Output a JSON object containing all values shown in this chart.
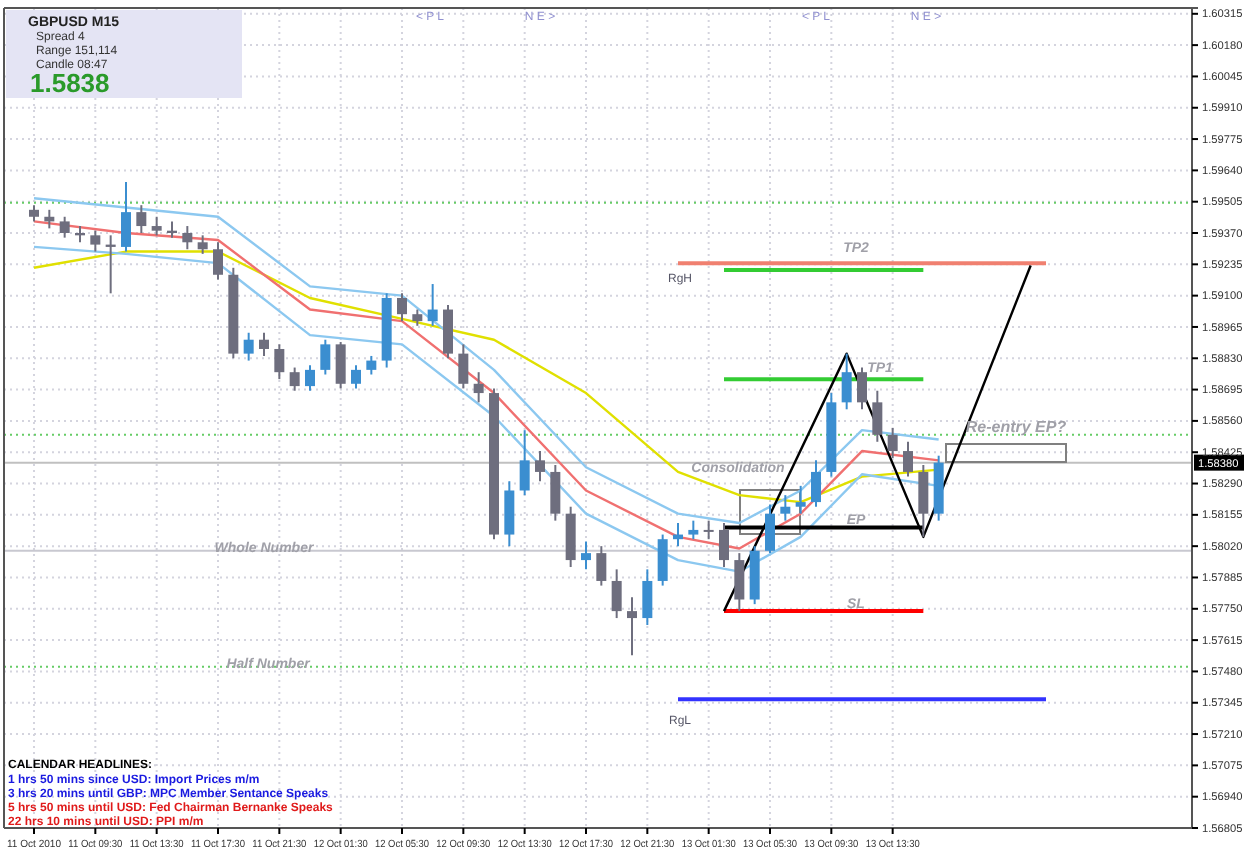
{
  "chart_data": {
    "type": "candlestick",
    "title": "GBPUSD M15",
    "annotations": [
      "Spread 4",
      "Range 151,114",
      "Candle 08:47",
      "1.5838",
      "CALENDAR HEADLINES:",
      "1 hrs 50 mins since USD: Import Prices m/m",
      "3 hrs 20 mins until GBP: MPC Member Sentance Speaks",
      "5 hrs 50 mins until USD: Fed Chairman Bernanke Speaks",
      "22 hrs 10 mins until USD: PPI m/m",
      "Whole Number",
      "Half Number",
      "RgH",
      "TP2",
      "TP1",
      "EP",
      "SL",
      "RgL",
      "Consolidation",
      "Re-entry EP?",
      "< P L",
      "N E >",
      "< P L",
      "N E >"
    ],
    "categories": [
      "11 Oct 2010",
      null,
      null,
      null,
      "11 Oct 09:30",
      null,
      null,
      null,
      "11 Oct 13:30",
      null,
      null,
      null,
      "11 Oct 17:30",
      null,
      null,
      null,
      "11 Oct 21:30",
      null,
      null,
      null,
      "12 Oct 01:30",
      null,
      null,
      null,
      "12 Oct 05:30",
      null,
      null,
      null,
      "12 Oct 09:30",
      null,
      null,
      null,
      "12 Oct 13:30",
      null,
      null,
      null,
      "12 Oct 17:30",
      null,
      null,
      null,
      "12 Oct 21:30",
      null,
      null,
      null,
      "13 Oct 01:30",
      null,
      null,
      null,
      "13 Oct 05:30",
      null,
      null,
      null,
      "13 Oct 09:30",
      null,
      null,
      null,
      "13 Oct 13:30",
      null,
      null,
      null,
      null,
      null,
      null,
      null,
      null,
      null,
      null,
      null,
      null,
      null,
      null,
      null,
      null,
      null,
      null,
      null
    ],
    "ohlc": [
      [
        1.5947,
        1.5949,
        1.5942,
        1.5944
      ],
      [
        1.5944,
        1.5947,
        1.5939,
        1.5942
      ],
      [
        1.5942,
        1.5944,
        1.5935,
        1.5937
      ],
      [
        1.5937,
        1.594,
        1.5933,
        1.5936
      ],
      [
        1.5936,
        1.5938,
        1.5929,
        1.5932
      ],
      [
        1.5932,
        1.5936,
        1.5911,
        1.5931
      ],
      [
        1.5931,
        1.5959,
        1.5929,
        1.5946
      ],
      [
        1.5946,
        1.5949,
        1.5937,
        1.594
      ],
      [
        1.594,
        1.5944,
        1.5936,
        1.5938
      ],
      [
        1.5938,
        1.5942,
        1.5935,
        1.5937
      ],
      [
        1.5937,
        1.594,
        1.593,
        1.5933
      ],
      [
        1.5933,
        1.5936,
        1.5928,
        1.593
      ],
      [
        1.593,
        1.5933,
        1.5917,
        1.5919
      ],
      [
        1.5919,
        1.5922,
        1.5883,
        1.5885
      ],
      [
        1.5885,
        1.5894,
        1.5882,
        1.5891
      ],
      [
        1.5891,
        1.5894,
        1.5884,
        1.5887
      ],
      [
        1.5887,
        1.5889,
        1.5874,
        1.5877
      ],
      [
        1.5877,
        1.5879,
        1.5869,
        1.5871
      ],
      [
        1.5871,
        1.588,
        1.5869,
        1.5878
      ],
      [
        1.5878,
        1.5891,
        1.5876,
        1.5889
      ],
      [
        1.5889,
        1.589,
        1.587,
        1.5872
      ],
      [
        1.5872,
        1.588,
        1.587,
        1.5878
      ],
      [
        1.5878,
        1.5884,
        1.5876,
        1.5882
      ],
      [
        1.5882,
        1.5911,
        1.5879,
        1.5909
      ],
      [
        1.5909,
        1.5911,
        1.5899,
        1.5902
      ],
      [
        1.5902,
        1.5904,
        1.5897,
        1.5899
      ],
      [
        1.5899,
        1.5915,
        1.5897,
        1.5904
      ],
      [
        1.5904,
        1.5906,
        1.5883,
        1.5885
      ],
      [
        1.5885,
        1.5889,
        1.587,
        1.5872
      ],
      [
        1.5872,
        1.5877,
        1.5864,
        1.5868
      ],
      [
        1.5868,
        1.587,
        1.5805,
        1.5807
      ],
      [
        1.5807,
        1.583,
        1.5802,
        1.5826
      ],
      [
        1.5826,
        1.5852,
        1.5824,
        1.5839
      ],
      [
        1.5839,
        1.5843,
        1.583,
        1.5834
      ],
      [
        1.5834,
        1.5837,
        1.5813,
        1.5816
      ],
      [
        1.5816,
        1.5819,
        1.5793,
        1.5796
      ],
      [
        1.5796,
        1.5804,
        1.5792,
        1.5799
      ],
      [
        1.5799,
        1.5802,
        1.5785,
        1.5787
      ],
      [
        1.5787,
        1.5792,
        1.5771,
        1.5774
      ],
      [
        1.5774,
        1.578,
        1.5755,
        1.5771
      ],
      [
        1.5771,
        1.5792,
        1.5768,
        1.5787
      ],
      [
        1.5787,
        1.5807,
        1.5785,
        1.5805
      ],
      [
        1.5805,
        1.5812,
        1.5802,
        1.5807
      ],
      [
        1.5807,
        1.5813,
        1.5805,
        1.5809
      ],
      [
        1.5809,
        1.5813,
        1.5805,
        1.5809
      ],
      [
        1.5809,
        1.5812,
        1.5793,
        1.5796
      ],
      [
        1.5796,
        1.5799,
        1.5774,
        1.5779
      ],
      [
        1.5779,
        1.5802,
        1.5777,
        1.58
      ],
      [
        1.58,
        1.582,
        1.5799,
        1.5816
      ],
      [
        1.5816,
        1.5824,
        1.5813,
        1.5819
      ],
      [
        1.5819,
        1.5828,
        1.5816,
        1.5821
      ],
      [
        1.5821,
        1.5839,
        1.5819,
        1.5834
      ],
      [
        1.5834,
        1.5868,
        1.5832,
        1.5864
      ],
      [
        1.5864,
        1.5885,
        1.5861,
        1.5877
      ],
      [
        1.5877,
        1.5879,
        1.5861,
        1.5864
      ],
      [
        1.5864,
        1.5869,
        1.5847,
        1.585
      ],
      [
        1.585,
        1.5853,
        1.584,
        1.5843
      ],
      [
        1.5843,
        1.5847,
        1.5832,
        1.5834
      ],
      [
        1.5834,
        1.5837,
        1.5806,
        1.5816
      ],
      [
        1.5816,
        1.5841,
        1.5813,
        1.5838
      ],
      null,
      null,
      null,
      null,
      null,
      null,
      null,
      null,
      null,
      null,
      null,
      null,
      null,
      null,
      null,
      null
    ],
    "colors": [
      "#6e6e7e",
      "#6e6e7e",
      "#6e6e7e",
      "#6e6e7e",
      "#6e6e7e",
      "#6e6e7e",
      "#3b8ed0",
      "#6e6e7e",
      "#6e6e7e",
      "#6e6e7e",
      "#6e6e7e",
      "#6e6e7e",
      "#6e6e7e",
      "#6e6e7e",
      "#3b8ed0",
      "#6e6e7e",
      "#6e6e7e",
      "#6e6e7e",
      "#3b8ed0",
      "#3b8ed0",
      "#6e6e7e",
      "#3b8ed0",
      "#3b8ed0",
      "#3b8ed0",
      "#6e6e7e",
      "#6e6e7e",
      "#3b8ed0",
      "#6e6e7e",
      "#6e6e7e",
      "#6e6e7e",
      "#6e6e7e",
      "#3b8ed0",
      "#3b8ed0",
      "#6e6e7e",
      "#6e6e7e",
      "#6e6e7e",
      "#3b8ed0",
      "#6e6e7e",
      "#6e6e7e",
      "#6e6e7e",
      "#3b8ed0",
      "#3b8ed0",
      "#3b8ed0",
      "#3b8ed0",
      "#6e6e7e",
      "#6e6e7e",
      "#6e6e7e",
      "#3b8ed0",
      "#3b8ed0",
      "#3b8ed0",
      "#3b8ed0",
      "#3b8ed0",
      "#3b8ed0",
      "#3b8ed0",
      "#6e6e7e",
      "#6e6e7e",
      "#6e6e7e",
      "#6e6e7e",
      "#6e6e7e",
      "#3b8ed0",
      null,
      null,
      null,
      null,
      null,
      null,
      null,
      null,
      null,
      null,
      null,
      null,
      null,
      null,
      null,
      null
    ],
    "series": [
      {
        "type": "line",
        "color": "#e0e000",
        "values": [
          1.5922,
          null,
          null,
          null,
          null,
          null,
          1.5929,
          null,
          null,
          null,
          null,
          null,
          1.5929,
          null,
          null,
          null,
          null,
          null,
          1.5909,
          null,
          null,
          null,
          null,
          null,
          1.59,
          null,
          null,
          null,
          null,
          null,
          1.5891,
          null,
          null,
          null,
          null,
          null,
          1.5868,
          null,
          null,
          null,
          null,
          null,
          1.5834,
          null,
          null,
          null,
          1.5824,
          null,
          null,
          null,
          1.5821,
          null,
          null,
          null,
          1.5832,
          null,
          null,
          null,
          null,
          1.5835,
          null,
          null,
          null,
          null,
          null,
          null,
          null,
          null,
          null,
          null,
          null,
          null,
          null,
          null,
          null,
          null
        ]
      },
      {
        "type": "line",
        "color": "#f07070",
        "values": [
          1.5942,
          null,
          null,
          null,
          null,
          null,
          1.5937,
          null,
          null,
          null,
          null,
          null,
          1.5934,
          null,
          null,
          null,
          null,
          null,
          1.5904,
          null,
          null,
          null,
          null,
          null,
          1.5899,
          null,
          null,
          null,
          null,
          null,
          1.5868,
          null,
          null,
          null,
          null,
          null,
          1.5826,
          null,
          null,
          null,
          null,
          null,
          1.5806,
          null,
          null,
          null,
          1.5801,
          null,
          null,
          null,
          1.5816,
          null,
          null,
          null,
          1.5843,
          null,
          null,
          null,
          null,
          1.5839,
          null,
          null,
          null,
          null,
          null,
          null,
          null,
          null,
          null,
          null,
          null,
          null,
          null,
          null,
          null,
          null
        ]
      },
      {
        "type": "line",
        "color": "#8cc8f0",
        "values": [
          1.5952,
          null,
          null,
          null,
          null,
          null,
          1.5948,
          null,
          null,
          null,
          null,
          null,
          1.5944,
          null,
          null,
          null,
          null,
          null,
          1.5914,
          null,
          null,
          null,
          null,
          null,
          1.591,
          null,
          null,
          null,
          null,
          null,
          1.5878,
          null,
          null,
          null,
          null,
          null,
          1.5836,
          null,
          null,
          null,
          null,
          null,
          1.5816,
          null,
          null,
          null,
          1.5812,
          null,
          null,
          null,
          1.5826,
          null,
          null,
          null,
          1.5852,
          null,
          null,
          null,
          null,
          1.5848,
          null,
          null,
          null,
          null,
          null,
          null,
          null,
          null,
          null,
          null,
          null,
          null,
          null,
          null,
          null,
          null
        ]
      },
      {
        "type": "line",
        "color": "#8cc8f0",
        "values": [
          1.5931,
          null,
          null,
          null,
          null,
          null,
          1.5928,
          null,
          null,
          null,
          null,
          null,
          1.5924,
          null,
          null,
          null,
          null,
          null,
          1.5893,
          null,
          null,
          null,
          null,
          null,
          1.5889,
          null,
          null,
          null,
          null,
          null,
          1.5858,
          null,
          null,
          null,
          null,
          null,
          1.5816,
          null,
          null,
          null,
          null,
          null,
          1.5796,
          null,
          null,
          null,
          1.5791,
          null,
          null,
          null,
          1.5806,
          null,
          null,
          null,
          1.5833,
          null,
          null,
          null,
          null,
          1.5828,
          null,
          null,
          null,
          null,
          null,
          null,
          null,
          null,
          null,
          null,
          null,
          null,
          null,
          null,
          null,
          null
        ]
      },
      {
        "type": "line",
        "color": "#f08070",
        "values": [
          null,
          null,
          null,
          null,
          null,
          null,
          null,
          null,
          null,
          null,
          null,
          null,
          null,
          null,
          null,
          null,
          null,
          null,
          null,
          null,
          null,
          null,
          null,
          null,
          null,
          null,
          null,
          null,
          null,
          null,
          null,
          null,
          null,
          null,
          null,
          null,
          null,
          null,
          null,
          null,
          null,
          null,
          1.5924,
          null,
          null,
          null,
          null,
          null,
          null,
          null,
          null,
          null,
          null,
          null,
          null,
          null,
          null,
          null,
          null,
          null,
          null,
          null,
          null,
          null,
          null,
          null,
          1.5924,
          null,
          null,
          null,
          null,
          null,
          null,
          null,
          null,
          null
        ]
      },
      {
        "type": "line",
        "color": "#33cc33",
        "values": [
          null,
          null,
          null,
          null,
          null,
          null,
          null,
          null,
          null,
          null,
          null,
          null,
          null,
          null,
          null,
          null,
          null,
          null,
          null,
          null,
          null,
          null,
          null,
          null,
          null,
          null,
          null,
          null,
          null,
          null,
          null,
          null,
          null,
          null,
          null,
          null,
          null,
          null,
          null,
          null,
          null,
          null,
          null,
          null,
          null,
          1.5921,
          null,
          null,
          null,
          null,
          null,
          null,
          null,
          null,
          null,
          null,
          null,
          null,
          1.5921,
          null,
          null,
          null,
          null,
          null,
          null,
          null,
          null,
          null,
          null,
          null,
          null,
          null,
          null,
          null,
          null,
          null
        ]
      },
      {
        "type": "line",
        "color": "#33cc33",
        "values": [
          null,
          null,
          null,
          null,
          null,
          null,
          null,
          null,
          null,
          null,
          null,
          null,
          null,
          null,
          null,
          null,
          null,
          null,
          null,
          null,
          null,
          null,
          null,
          null,
          null,
          null,
          null,
          null,
          null,
          null,
          null,
          null,
          null,
          null,
          null,
          null,
          null,
          null,
          null,
          null,
          null,
          null,
          null,
          null,
          null,
          1.5874,
          null,
          null,
          null,
          null,
          null,
          null,
          null,
          null,
          null,
          null,
          null,
          null,
          1.5874,
          null,
          null,
          null,
          null,
          null,
          null,
          null,
          null,
          null,
          null,
          null,
          null,
          null,
          null,
          null,
          null,
          null
        ]
      },
      {
        "type": "line",
        "color": "#000000",
        "values": [
          null,
          null,
          null,
          null,
          null,
          null,
          null,
          null,
          null,
          null,
          null,
          null,
          null,
          null,
          null,
          null,
          null,
          null,
          null,
          null,
          null,
          null,
          null,
          null,
          null,
          null,
          null,
          null,
          null,
          null,
          null,
          null,
          null,
          null,
          null,
          null,
          null,
          null,
          null,
          null,
          null,
          null,
          null,
          null,
          null,
          1.581,
          null,
          null,
          null,
          null,
          null,
          null,
          null,
          null,
          null,
          null,
          null,
          null,
          1.581,
          null,
          null,
          null,
          null,
          null,
          null,
          null,
          null,
          null,
          null,
          null,
          null,
          null,
          null,
          null,
          null,
          null
        ]
      },
      {
        "type": "line",
        "color": "#ff0000",
        "values": [
          null,
          null,
          null,
          null,
          null,
          null,
          null,
          null,
          null,
          null,
          null,
          null,
          null,
          null,
          null,
          null,
          null,
          null,
          null,
          null,
          null,
          null,
          null,
          null,
          null,
          null,
          null,
          null,
          null,
          null,
          null,
          null,
          null,
          null,
          null,
          null,
          null,
          null,
          null,
          null,
          null,
          null,
          null,
          null,
          null,
          1.5774,
          null,
          null,
          null,
          null,
          null,
          null,
          null,
          null,
          null,
          null,
          null,
          null,
          1.5774,
          null,
          null,
          null,
          null,
          null,
          null,
          null,
          null,
          null,
          null,
          null,
          null,
          null,
          null,
          null,
          null,
          null
        ]
      },
      {
        "type": "line",
        "color": "#3333ff",
        "values": [
          null,
          null,
          null,
          null,
          null,
          null,
          null,
          null,
          null,
          null,
          null,
          null,
          null,
          null,
          null,
          null,
          null,
          null,
          null,
          null,
          null,
          null,
          null,
          null,
          null,
          null,
          null,
          null,
          null,
          null,
          null,
          null,
          null,
          null,
          null,
          null,
          null,
          null,
          null,
          null,
          null,
          null,
          1.5736,
          null,
          null,
          null,
          null,
          null,
          null,
          null,
          null,
          null,
          null,
          null,
          null,
          null,
          null,
          null,
          null,
          null,
          null,
          null,
          null,
          null,
          null,
          null,
          1.5736,
          null,
          null,
          null,
          null,
          null,
          null,
          null,
          null,
          null
        ]
      },
      {
        "type": "line",
        "color": "#000000",
        "values": [
          null,
          null,
          null,
          null,
          null,
          null,
          null,
          null,
          null,
          null,
          null,
          null,
          null,
          null,
          null,
          null,
          null,
          null,
          null,
          null,
          null,
          null,
          null,
          null,
          null,
          null,
          null,
          null,
          null,
          null,
          null,
          null,
          null,
          null,
          null,
          null,
          null,
          null,
          null,
          null,
          null,
          null,
          null,
          null,
          null,
          1.5774,
          null,
          null,
          null,
          null,
          null,
          null,
          null,
          1.5885,
          null,
          null,
          null,
          null,
          1.5806,
          null,
          null,
          null,
          null,
          null,
          null,
          1.5923,
          null,
          null,
          null,
          null,
          null,
          null,
          null,
          null,
          null,
          null
        ]
      }
    ],
    "ref_lines": [
      {
        "axis": "y",
        "value": 1.595,
        "color": "#66cc66",
        "line_style": "dotted"
      },
      {
        "axis": "y",
        "value": 1.585,
        "color": "#66cc66",
        "line_style": "dotted"
      },
      {
        "axis": "y",
        "value": 1.575,
        "color": "#66cc66",
        "line_style": "dotted"
      },
      {
        "axis": "y",
        "value": 1.58,
        "color": "#c8c8d0",
        "line_style": "solid"
      },
      {
        "axis": "y",
        "value": 1.5838,
        "label": "1.58380",
        "color": "#c0c0c0",
        "line_style": "solid"
      }
    ],
    "ylim": [
      1.56805,
      1.6034
    ],
    "yticks": [
      1.60315,
      {
        "value": 1.6018,
        "label": "1.60180"
      },
      1.60045,
      {
        "value": 1.5991,
        "label": "1.59910"
      },
      1.59775,
      {
        "value": 1.5964,
        "label": "1.59640"
      },
      1.59505,
      {
        "value": 1.5937,
        "label": "1.59370"
      },
      1.59235,
      {
        "value": 1.591,
        "label": "1.59100"
      },
      1.58965,
      {
        "value": 1.5883,
        "label": "1.58830"
      },
      1.58695,
      {
        "value": 1.5856,
        "label": "1.58560"
      },
      1.58425,
      {
        "value": 1.5829,
        "label": "1.58290"
      },
      1.58155,
      {
        "value": 1.5802,
        "label": "1.58020"
      },
      1.57885,
      {
        "value": 1.5775,
        "label": "1.57750"
      },
      1.57615,
      {
        "value": 1.5748,
        "label": "1.57480"
      },
      1.57345,
      {
        "value": 1.5721,
        "label": "1.57210"
      },
      1.57075,
      {
        "value": 1.5694,
        "label": "1.56940"
      },
      1.56805
    ],
    "grid": true
  }
}
